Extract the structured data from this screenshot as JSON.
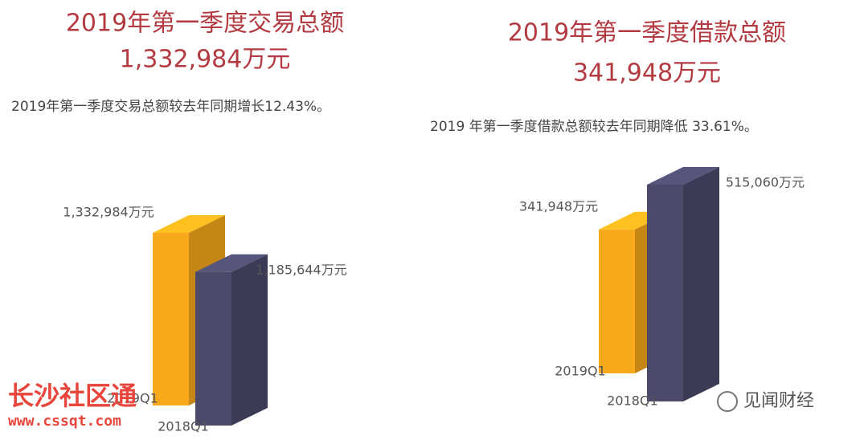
{
  "chart_data": [
    {
      "type": "bar",
      "title": "2019年第一季度交易总额",
      "headline": "1,332,984万元",
      "subtitle": "2019年第一季度交易总额较去年同期增长12.43%。",
      "categories": [
        "2019Q1",
        "2018Q1"
      ],
      "values": [
        1332984,
        1185644
      ],
      "value_labels": [
        "1,332,984万元",
        "1,185,644万元"
      ],
      "colors": [
        "#f7a81b",
        "#4b4a6b"
      ]
    },
    {
      "type": "bar",
      "title": "2019年第一季度借款总额",
      "headline": "341,948万元",
      "subtitle": "2019 年第一季度借款总额较去年同期降低 33.61%。",
      "categories": [
        "2019Q1",
        "2018Q1"
      ],
      "values": [
        341948,
        515060
      ],
      "value_labels": [
        "341,948万元",
        "515,060万元"
      ],
      "colors": [
        "#f7a81b",
        "#4b4a6b"
      ]
    }
  ],
  "watermarks": {
    "site": "长沙社区通",
    "url": "www.cssqt.com",
    "brand": "见闻财经"
  }
}
